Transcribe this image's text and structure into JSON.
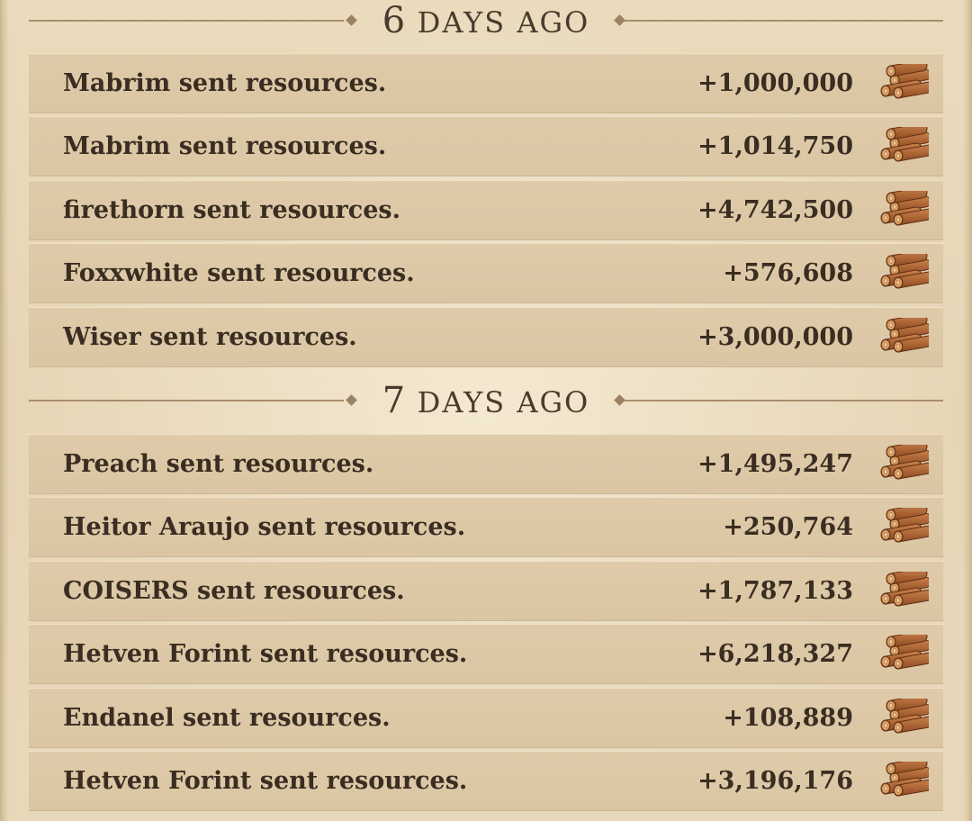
{
  "groups": [
    {
      "number": "6",
      "word": "DAYS AGO",
      "entries": [
        {
          "message": "Mabrim sent resources.",
          "amount": "+1,000,000",
          "icon": "wood-logs-icon"
        },
        {
          "message": "Mabrim sent resources.",
          "amount": "+1,014,750",
          "icon": "wood-logs-icon"
        },
        {
          "message": "firethorn sent resources.",
          "amount": "+4,742,500",
          "icon": "wood-logs-icon"
        },
        {
          "message": "Foxxwhite sent resources.",
          "amount": "+576,608",
          "icon": "wood-logs-icon"
        },
        {
          "message": "Wiser sent resources.",
          "amount": "+3,000,000",
          "icon": "wood-logs-icon"
        }
      ]
    },
    {
      "number": "7",
      "word": "DAYS AGO",
      "entries": [
        {
          "message": "Preach sent resources.",
          "amount": "+1,495,247",
          "icon": "wood-logs-icon"
        },
        {
          "message": "Heitor Araujo sent resources.",
          "amount": "+250,764",
          "icon": "wood-logs-icon"
        },
        {
          "message": "COISERS sent resources.",
          "amount": "+1,787,133",
          "icon": "wood-logs-icon"
        },
        {
          "message": "Hetven Forint sent resources.",
          "amount": "+6,218,327",
          "icon": "wood-logs-icon"
        },
        {
          "message": "Endanel sent resources.",
          "amount": "+108,889",
          "icon": "wood-logs-icon"
        },
        {
          "message": "Hetven Forint sent resources.",
          "amount": "+3,196,176",
          "icon": "wood-logs-icon"
        }
      ]
    }
  ],
  "colors": {
    "parchment": "#e9d9bc",
    "row": "#dcc8a5",
    "text": "#3a2d22",
    "divider_line": "#a88e6d",
    "wood_light": "#d79a5d",
    "wood_dark": "#8a4a25"
  }
}
